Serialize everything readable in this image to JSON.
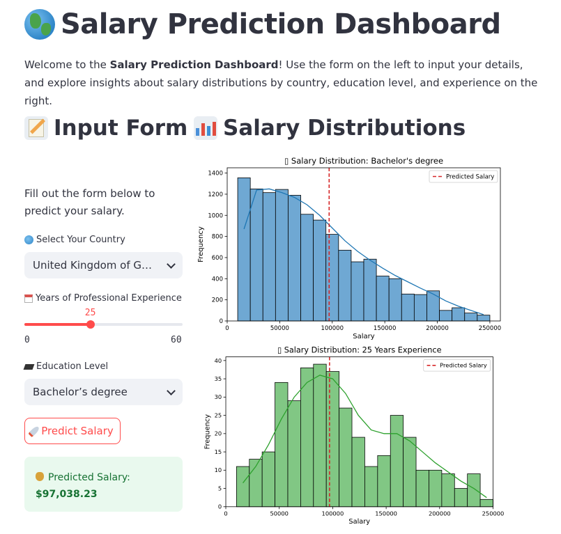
{
  "page": {
    "title": "Salary Prediction Dashboard",
    "title_icon": "globe-emoji",
    "intro": {
      "prefix": "Welcome to the ",
      "bold": "Salary Prediction Dashboard",
      "suffix": "! Use the form on the left to input your details, and explore insights about salary distributions by country, education level, and experience on the right."
    }
  },
  "form": {
    "heading": "Input Form",
    "heading_icon": "memo-emoji",
    "description": "Fill out the form below to predict your salary.",
    "country_label": "Select Your Country",
    "country_icon": "globe-emoji",
    "country_value": "United Kingdom of Great Britain and Northern Ireland",
    "experience_label": "Years of Professional Experience",
    "experience_icon": "calendar-emoji",
    "experience_value": 25,
    "experience_value_text": "25",
    "experience_min": "0",
    "experience_max": "60",
    "education_label": "Education Level",
    "education_icon": "graduation-cap-emoji",
    "education_value": "Bachelor’s degree",
    "predict_label": "Predict Salary",
    "predict_icon": "rocket-emoji",
    "result_label": "Predicted Salary:",
    "result_icon": "money-bag-emoji",
    "result_value": "$97,038.23"
  },
  "charts_section": {
    "heading": "Salary Distributions",
    "heading_icon": "bar-chart-emoji",
    "colors": {
      "blue": "#6fa8d3",
      "blue_line": "#1f77b4",
      "green": "#81c784",
      "green_line": "#2ca02c",
      "predicted": "#d62728"
    }
  },
  "chart_data": [
    {
      "type": "bar",
      "title": "▯ Salary Distribution: Bachelor's degree",
      "xlabel": "Salary",
      "ylabel": "Frequency",
      "xlim": [
        0,
        260000
      ],
      "ylim": [
        0,
        1450
      ],
      "xticks": [
        0,
        50000,
        100000,
        150000,
        200000,
        250000
      ],
      "xtick_labels": [
        "0",
        "50000",
        "100000",
        "150000",
        "200000",
        "250000"
      ],
      "yticks": [
        0,
        200,
        400,
        600,
        800,
        1000,
        1200,
        1400
      ],
      "yticks_labels": [
        "0",
        "200",
        "400",
        "600",
        "800",
        "1000",
        "1200",
        "1400"
      ],
      "bin_start": 10000,
      "bin_width": 12000,
      "values": [
        1355,
        1250,
        1215,
        1245,
        1190,
        1010,
        955,
        820,
        670,
        560,
        585,
        425,
        400,
        255,
        250,
        285,
        100,
        125,
        75,
        55
      ],
      "kde": [
        870,
        1240,
        1250,
        1215,
        1170,
        1100,
        1000,
        880,
        760,
        660,
        575,
        500,
        430,
        370,
        310,
        255,
        190,
        140,
        100,
        60
      ],
      "predicted": 97038.23,
      "legend": "Predicted Salary",
      "legend_position": "top-right"
    },
    {
      "type": "bar",
      "title": "▯ Salary Distribution: 25 Years Experience",
      "xlabel": "Salary",
      "ylabel": "Frequency",
      "xlim": [
        0,
        250000
      ],
      "ylim": [
        0,
        41
      ],
      "xticks": [
        0,
        50000,
        100000,
        150000,
        200000,
        250000
      ],
      "xtick_labels": [
        "0",
        "50000",
        "100000",
        "150000",
        "200000",
        "250000"
      ],
      "yticks": [
        0,
        5,
        10,
        15,
        20,
        25,
        30,
        35,
        40
      ],
      "yticks_labels": [
        "0",
        "5",
        "10",
        "15",
        "20",
        "25",
        "30",
        "35",
        "40"
      ],
      "bin_start": 10000,
      "bin_width": 12000,
      "values": [
        11,
        13,
        15,
        34,
        29,
        38,
        39,
        37,
        27,
        19,
        11,
        14,
        25,
        19,
        10,
        10,
        9,
        5,
        9,
        2
      ],
      "kde": [
        6.5,
        11,
        17,
        24,
        30,
        34,
        36,
        35,
        31,
        25,
        21,
        20,
        20,
        18,
        15,
        12,
        9.5,
        7,
        5,
        2.5
      ],
      "predicted": 97038.23,
      "legend": "Predicted Salary",
      "legend_position": "top-right"
    }
  ]
}
